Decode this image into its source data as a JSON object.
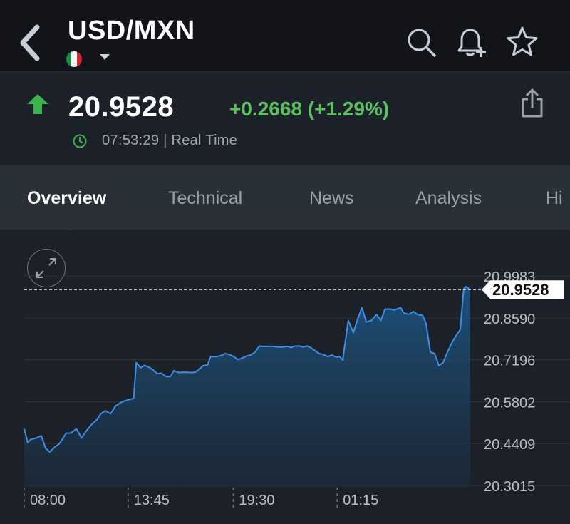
{
  "header": {
    "title": "USD/MXN",
    "back_icon": "chevron-left-icon",
    "flag_icon": "mexico-flag-icon",
    "actions": [
      "search-icon",
      "bell-add-icon",
      "star-icon"
    ]
  },
  "quote": {
    "price": "20.9528",
    "change": "+0.2668 (+1.29%)",
    "time": "07:53:29 | Real Time",
    "direction_icon": "arrow-up-icon",
    "colors": {
      "up": "#3cb44b",
      "change": "#5bc15f"
    }
  },
  "tabs": [
    {
      "label": "Overview",
      "active": true
    },
    {
      "label": "Technical",
      "active": false
    },
    {
      "label": "News",
      "active": false
    },
    {
      "label": "Analysis",
      "active": false
    },
    {
      "label": "Hi",
      "active": false
    }
  ],
  "chart_data": {
    "type": "area",
    "x": [
      "08:00",
      "13:45",
      "19:30",
      "01:15"
    ],
    "y_ticks": [
      "20.9983",
      "20.8590",
      "20.7196",
      "20.5802",
      "20.4409",
      "20.3015"
    ],
    "ylim": [
      20.3015,
      20.9983
    ],
    "current_value": 20.9528,
    "current_label": "20.9528",
    "grid": true,
    "line_color": "#3d8ee8",
    "x_tick_positions": [
      0.0,
      0.243,
      0.489,
      0.732
    ],
    "points": [
      [
        0.0,
        20.49
      ],
      [
        0.008,
        20.445
      ],
      [
        0.016,
        20.455
      ],
      [
        0.026,
        20.458
      ],
      [
        0.04,
        20.467
      ],
      [
        0.05,
        20.425
      ],
      [
        0.06,
        20.413
      ],
      [
        0.072,
        20.43
      ],
      [
        0.082,
        20.44
      ],
      [
        0.098,
        20.475
      ],
      [
        0.109,
        20.476
      ],
      [
        0.122,
        20.49
      ],
      [
        0.134,
        20.46
      ],
      [
        0.145,
        20.482
      ],
      [
        0.158,
        20.505
      ],
      [
        0.17,
        20.52
      ],
      [
        0.179,
        20.54
      ],
      [
        0.19,
        20.55
      ],
      [
        0.202,
        20.54
      ],
      [
        0.213,
        20.565
      ],
      [
        0.225,
        20.577
      ],
      [
        0.234,
        20.582
      ],
      [
        0.245,
        20.587
      ],
      [
        0.256,
        20.591
      ],
      [
        0.262,
        20.71
      ],
      [
        0.272,
        20.693
      ],
      [
        0.281,
        20.701
      ],
      [
        0.292,
        20.695
      ],
      [
        0.302,
        20.685
      ],
      [
        0.311,
        20.673
      ],
      [
        0.321,
        20.675
      ],
      [
        0.327,
        20.668
      ],
      [
        0.334,
        20.663
      ],
      [
        0.342,
        20.664
      ],
      [
        0.35,
        20.683
      ],
      [
        0.362,
        20.677
      ],
      [
        0.375,
        20.678
      ],
      [
        0.39,
        20.677
      ],
      [
        0.4,
        20.678
      ],
      [
        0.41,
        20.688
      ],
      [
        0.418,
        20.7
      ],
      [
        0.429,
        20.702
      ],
      [
        0.436,
        20.73
      ],
      [
        0.45,
        20.73
      ],
      [
        0.46,
        20.733
      ],
      [
        0.47,
        20.74
      ],
      [
        0.48,
        20.737
      ],
      [
        0.49,
        20.73
      ],
      [
        0.5,
        20.72
      ],
      [
        0.51,
        20.725
      ],
      [
        0.52,
        20.732
      ],
      [
        0.53,
        20.735
      ],
      [
        0.54,
        20.745
      ],
      [
        0.55,
        20.765
      ],
      [
        0.557,
        20.764
      ],
      [
        0.568,
        20.764
      ],
      [
        0.58,
        20.764
      ],
      [
        0.595,
        20.762
      ],
      [
        0.605,
        20.762
      ],
      [
        0.615,
        20.764
      ],
      [
        0.625,
        20.76
      ],
      [
        0.633,
        20.765
      ],
      [
        0.644,
        20.765
      ],
      [
        0.652,
        20.762
      ],
      [
        0.662,
        20.765
      ],
      [
        0.67,
        20.76
      ],
      [
        0.678,
        20.752
      ],
      [
        0.69,
        20.74
      ],
      [
        0.7,
        20.737
      ],
      [
        0.71,
        20.73
      ],
      [
        0.72,
        20.735
      ],
      [
        0.73,
        20.728
      ],
      [
        0.738,
        20.73
      ],
      [
        0.745,
        20.718
      ],
      [
        0.758,
        20.85
      ],
      [
        0.77,
        20.81
      ],
      [
        0.78,
        20.855
      ],
      [
        0.79,
        20.893
      ],
      [
        0.8,
        20.845
      ],
      [
        0.812,
        20.85
      ],
      [
        0.824,
        20.87
      ],
      [
        0.834,
        20.85
      ],
      [
        0.844,
        20.888
      ],
      [
        0.856,
        20.888
      ],
      [
        0.866,
        20.885
      ],
      [
        0.88,
        20.893
      ],
      [
        0.888,
        20.875
      ],
      [
        0.9,
        20.87
      ],
      [
        0.91,
        20.88
      ],
      [
        0.92,
        20.87
      ],
      [
        0.932,
        20.867
      ],
      [
        0.94,
        20.84
      ],
      [
        0.95,
        20.745
      ],
      [
        0.96,
        20.74
      ],
      [
        0.97,
        20.7
      ],
      [
        0.98,
        20.71
      ],
      [
        0.99,
        20.745
      ],
      [
        1.0,
        20.775
      ],
      [
        1.01,
        20.8
      ],
      [
        1.02,
        20.82
      ],
      [
        1.028,
        20.955
      ],
      [
        1.033,
        20.963
      ],
      [
        1.043,
        20.9528
      ]
    ]
  }
}
